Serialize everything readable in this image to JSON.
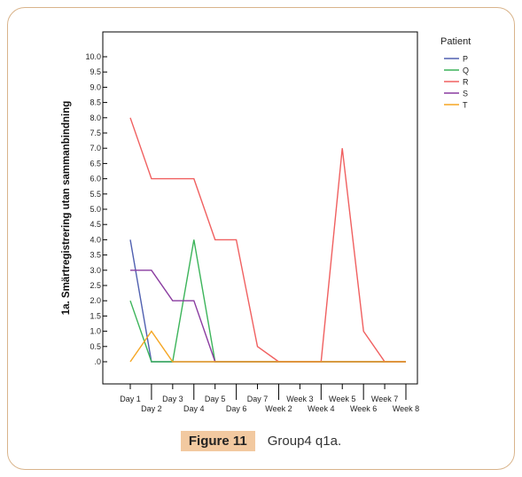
{
  "chart_data": {
    "type": "line",
    "ylabel": "1a. Smärtregistrering utan sammanbindning",
    "xlabel": "",
    "ylim": [
      0,
      10
    ],
    "yticks": [
      ".0",
      "0.5",
      "1.0",
      "1.5",
      "2.0",
      "2.5",
      "3.0",
      "3.5",
      "4.0",
      "4.5",
      "5.0",
      "5.5",
      "6.0",
      "6.5",
      "7.0",
      "7.5",
      "8.0",
      "8.5",
      "9.0",
      "9.5",
      "10.0"
    ],
    "categories": [
      "Day 1",
      "Day 2",
      "Day 3",
      "Day 4",
      "Day 5",
      "Day 6",
      "Day 7",
      "Week 2",
      "Week 3",
      "Week 4",
      "Week 5",
      "Week 6",
      "Week 7",
      "Week 8"
    ],
    "legend_title": "Patient",
    "legend_position": "right",
    "grid": false,
    "series": [
      {
        "name": "P",
        "color": "#5060b0",
        "values": [
          4,
          0,
          0,
          0,
          0,
          0,
          0,
          0,
          0,
          0,
          0,
          0,
          0,
          0
        ]
      },
      {
        "name": "Q",
        "color": "#3cb45a",
        "values": [
          2,
          0,
          0,
          4,
          0,
          0,
          0,
          0,
          0,
          0,
          0,
          0,
          0,
          0
        ]
      },
      {
        "name": "R",
        "color": "#f06060",
        "values": [
          8,
          6,
          6,
          6,
          4,
          4,
          0.5,
          0,
          0,
          0,
          7,
          1,
          0,
          0
        ]
      },
      {
        "name": "S",
        "color": "#8a3ca0",
        "values": [
          3,
          3,
          2,
          2,
          0,
          0,
          0,
          0,
          0,
          0,
          0,
          0,
          0,
          0
        ]
      },
      {
        "name": "T",
        "color": "#f5a623",
        "values": [
          0,
          1,
          0,
          0,
          0,
          0,
          0,
          0,
          0,
          0,
          0,
          0,
          0,
          0
        ]
      }
    ]
  },
  "caption": {
    "label": "Figure 11",
    "text": "Group4  q1a."
  }
}
